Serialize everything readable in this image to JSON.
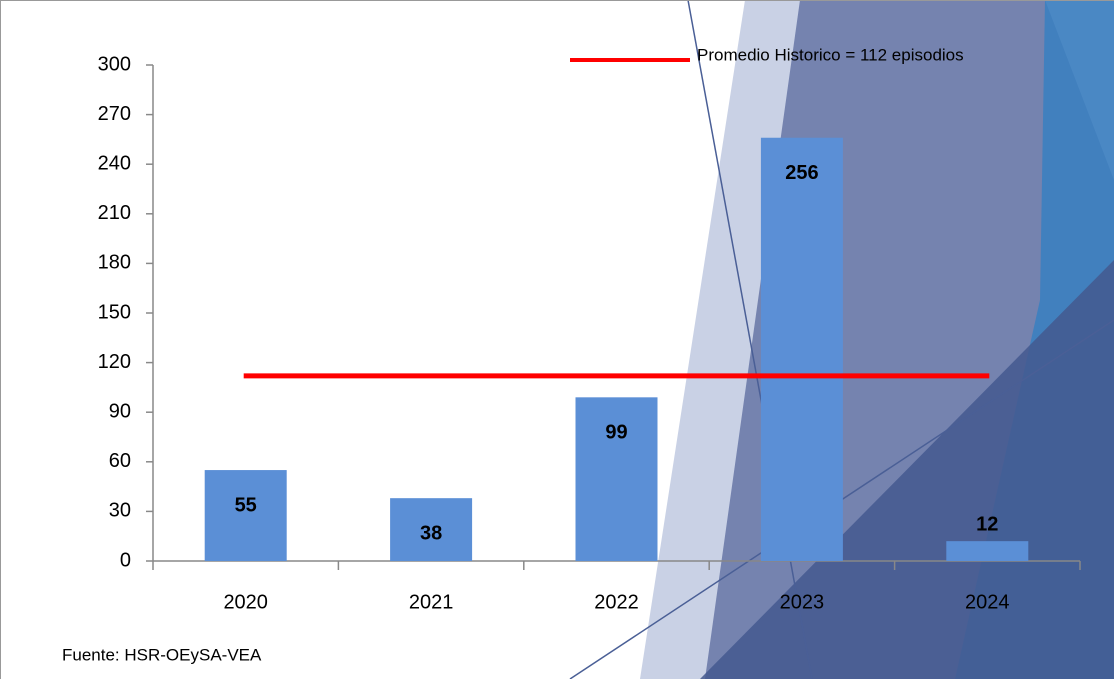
{
  "chart_data": {
    "type": "bar",
    "categories": [
      "2020",
      "2021",
      "2022",
      "2023",
      "2024"
    ],
    "values": [
      55,
      38,
      99,
      256,
      12
    ],
    "color": "#5b8fd6",
    "ylim": [
      0,
      300
    ],
    "yticks": [
      0,
      30,
      60,
      90,
      120,
      150,
      180,
      210,
      240,
      270,
      300
    ],
    "reference_line": {
      "name": "Promedio Historico = 112 episodios",
      "value": 112,
      "color": "#ff0000"
    },
    "source": "Fuente: HSR-OEySA-VEA"
  }
}
